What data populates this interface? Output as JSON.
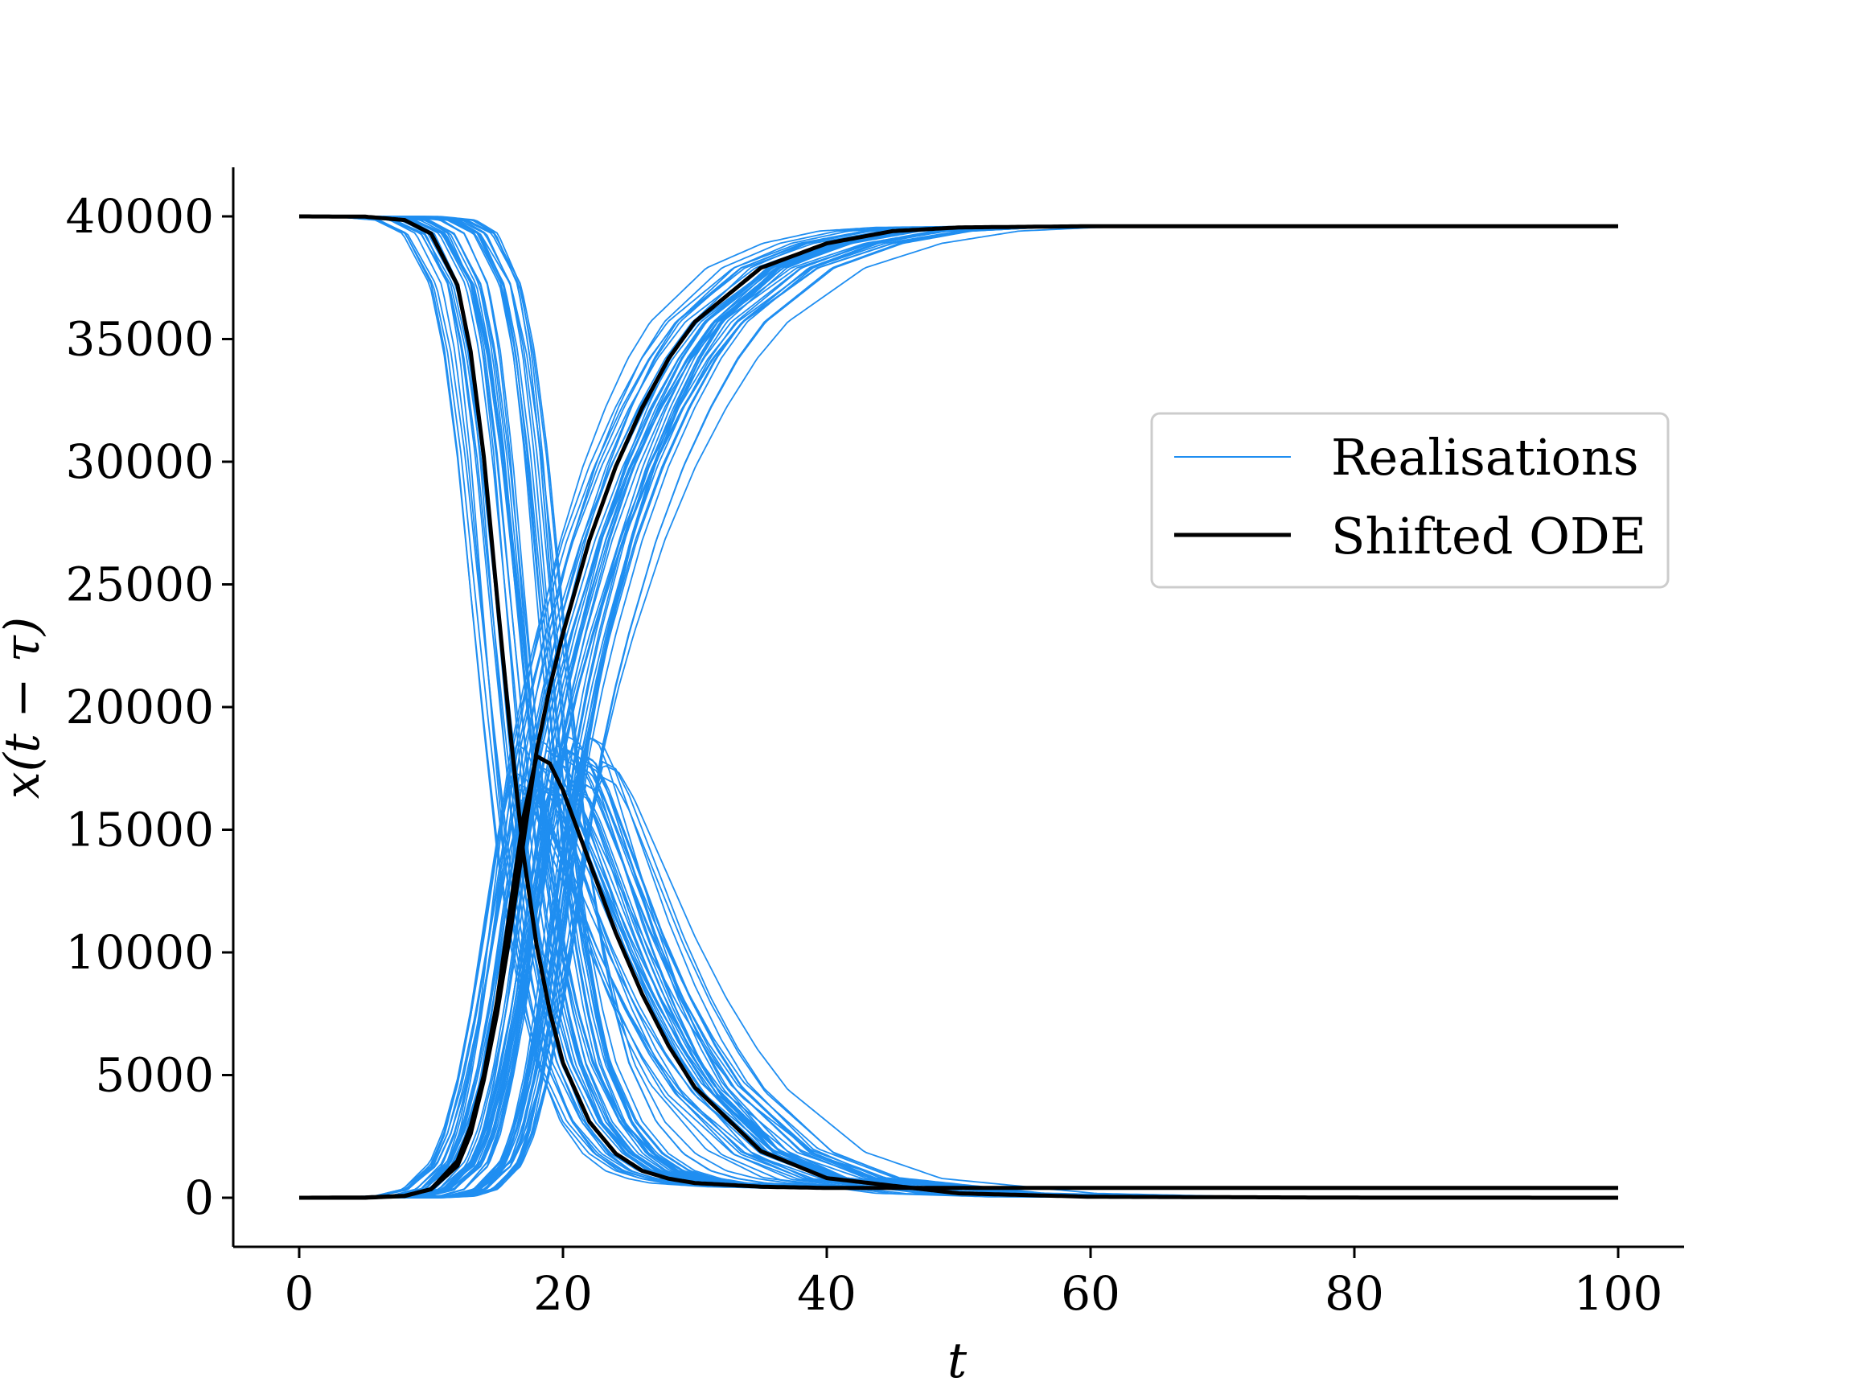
{
  "chart_data": {
    "type": "line",
    "xlabel": "t",
    "ylabel": "x(t − τ)",
    "xlim": [
      -5,
      105
    ],
    "ylim": [
      -2000,
      42000
    ],
    "x_ticks": [
      0,
      20,
      40,
      60,
      80,
      100
    ],
    "y_ticks": [
      0,
      5000,
      10000,
      15000,
      20000,
      25000,
      30000,
      35000,
      40000
    ],
    "grid": false,
    "legend": {
      "placement": "right",
      "entries": [
        {
          "label": "Realisations",
          "color": "#1f8ef1"
        },
        {
          "label": "Shifted ODE",
          "color": "#000000"
        }
      ]
    },
    "colors": {
      "realisations": "#1f8ef1",
      "ode": "#000000"
    },
    "series": [
      {
        "name": "Shifted ODE",
        "role": "ode",
        "x": [
          0,
          5,
          8,
          10,
          12,
          13,
          14,
          15,
          16,
          17,
          18,
          19,
          20,
          22,
          24,
          26,
          28,
          30,
          35,
          40,
          50,
          60,
          80,
          100
        ],
        "y": [
          40000,
          39990,
          39850,
          39300,
          37200,
          34500,
          30200,
          24500,
          19000,
          14000,
          10300,
          7600,
          5500,
          3100,
          1800,
          1100,
          780,
          600,
          450,
          400,
          400,
          400,
          400,
          400
        ]
      },
      {
        "role": "ode",
        "x": [
          0,
          5,
          8,
          10,
          12,
          13,
          14,
          15,
          16,
          17,
          18,
          19,
          20,
          22,
          24,
          26,
          28,
          30,
          35,
          40,
          50,
          60,
          80,
          100
        ],
        "y": [
          0,
          10,
          80,
          350,
          1500,
          2900,
          5000,
          8000,
          11800,
          15500,
          18000,
          17700,
          16600,
          13700,
          10800,
          8300,
          6200,
          4500,
          1900,
          800,
          180,
          40,
          5,
          0
        ]
      },
      {
        "role": "ode",
        "x": [
          0,
          5,
          8,
          10,
          12,
          13,
          14,
          15,
          16,
          17,
          18,
          19,
          20,
          22,
          24,
          26,
          28,
          30,
          35,
          40,
          45,
          50,
          60,
          80,
          100
        ],
        "y": [
          0,
          0,
          70,
          350,
          1300,
          2600,
          4800,
          7500,
          10800,
          14500,
          18200,
          20800,
          23000,
          26800,
          29800,
          32200,
          34200,
          35700,
          37900,
          38900,
          39400,
          39550,
          39600,
          39600,
          39600
        ]
      }
    ]
  }
}
